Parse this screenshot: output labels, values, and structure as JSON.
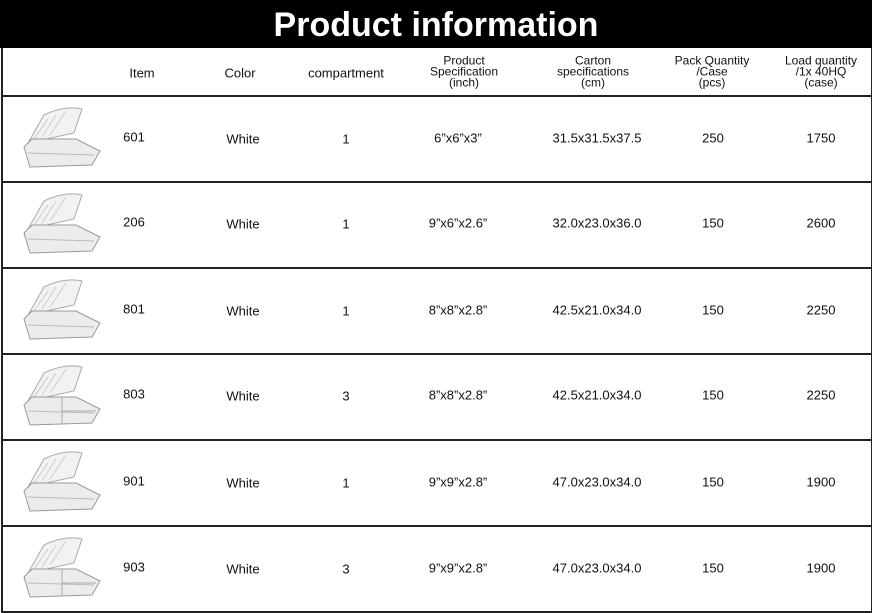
{
  "title": "Product information",
  "headers": {
    "item": "Item",
    "color": "Color",
    "compartment": "compartment",
    "product_spec": [
      "Product",
      "Specification",
      "(inch)"
    ],
    "carton_spec": [
      "Carton",
      "specifications",
      "(cm)"
    ],
    "pack_qty": [
      "Pack Quantity",
      "/Case",
      "(pcs)"
    ],
    "load_qty": [
      "Load quantity",
      "/1x 40HQ",
      "(case)"
    ]
  },
  "rows": [
    {
      "item": "601",
      "color": "White",
      "compartment": "1",
      "spec": "6”x6”x3”",
      "carton": "31.5x31.5x37.5",
      "pack": "250",
      "load": "1750",
      "image": "clamshell-container"
    },
    {
      "item": "206",
      "color": "White",
      "compartment": "1",
      "spec": "9”x6”x2.6”",
      "carton": "32.0x23.0x36.0",
      "pack": "150",
      "load": "2600",
      "image": "clamshell-container"
    },
    {
      "item": "801",
      "color": "White",
      "compartment": "1",
      "spec": "8”x8”x2.8”",
      "carton": "42.5x21.0x34.0",
      "pack": "150",
      "load": "2250",
      "image": "clamshell-container"
    },
    {
      "item": "803",
      "color": "White",
      "compartment": "3",
      "spec": "8”x8”x2.8”",
      "carton": "42.5x21.0x34.0",
      "pack": "150",
      "load": "2250",
      "image": "clamshell-container-3-compartment"
    },
    {
      "item": "901",
      "color": "White",
      "compartment": "1",
      "spec": "9”x9”x2.8”",
      "carton": "47.0x23.0x34.0",
      "pack": "150",
      "load": "1900",
      "image": "clamshell-container"
    },
    {
      "item": "903",
      "color": "White",
      "compartment": "3",
      "spec": "9”x9”x2.8”",
      "carton": "47.0x23.0x34.0",
      "pack": "150",
      "load": "1900",
      "image": "clamshell-container-3-compartment"
    }
  ]
}
